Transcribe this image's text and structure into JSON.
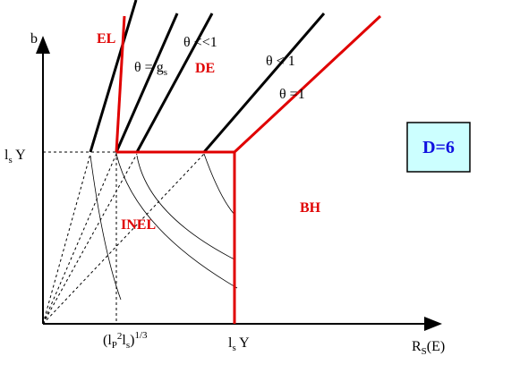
{
  "axes": {
    "y_label": "b",
    "y_tick": [
      "l",
      "s",
      " Y"
    ],
    "x_ticks": [
      [
        "(l",
        "P",
        "2",
        "l",
        "s",
        ")",
        "1/3"
      ],
      [
        "l",
        "s",
        " Y"
      ]
    ],
    "x_label": [
      "R",
      "S",
      "(E)"
    ]
  },
  "regions": {
    "el": "EL",
    "de": "DE",
    "bh": "BH",
    "inel": "INEL"
  },
  "lines": {
    "theta_much_less": "θ <<1",
    "theta_gs": [
      "θ = g",
      "s"
    ],
    "theta_less": "θ < 1",
    "theta_one": "θ =1"
  },
  "box": {
    "label": "D=6"
  }
}
